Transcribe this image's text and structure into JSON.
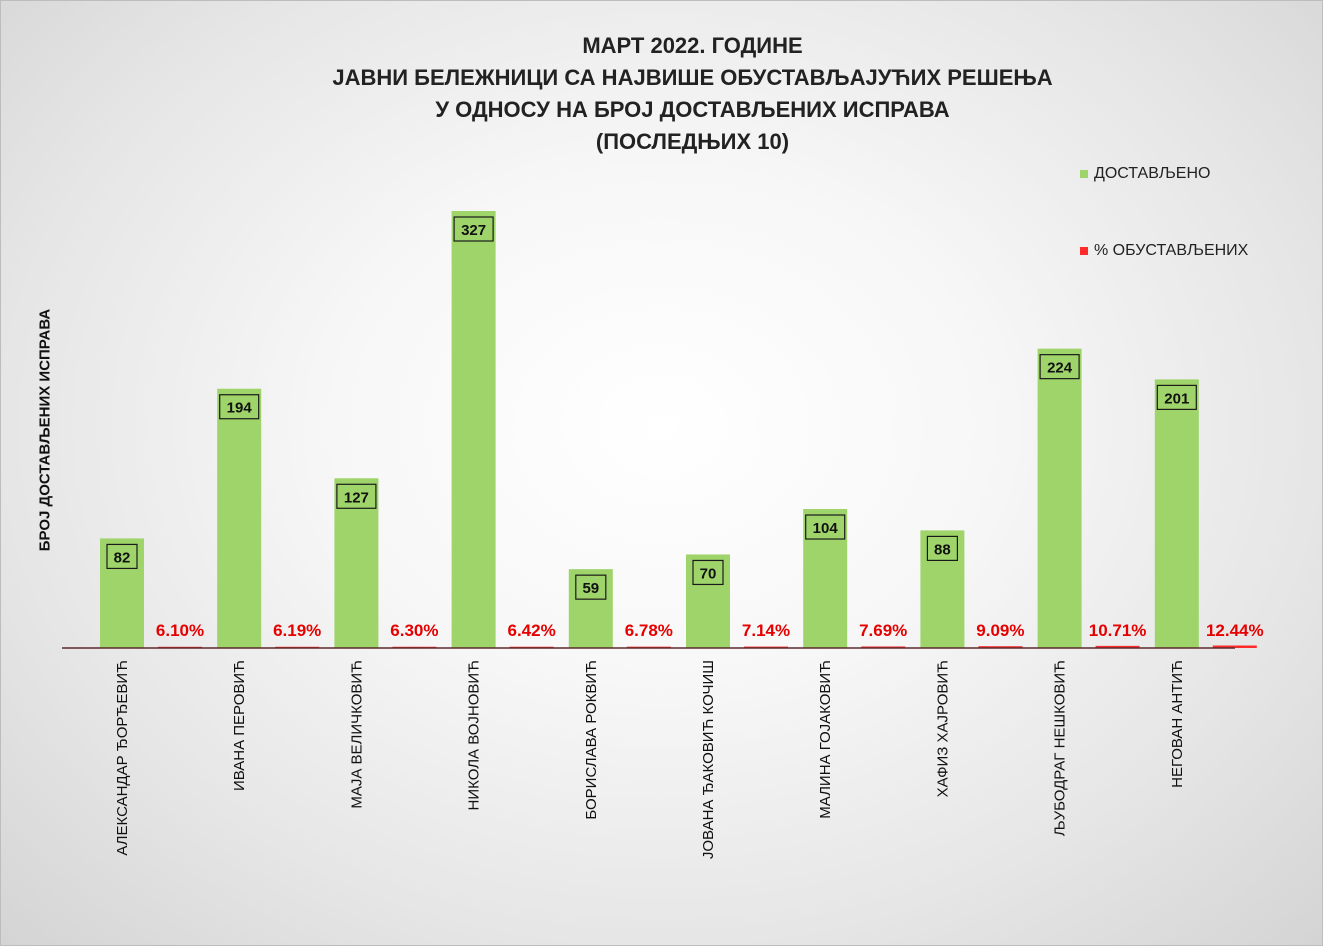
{
  "chart_data": {
    "type": "bar",
    "title_lines": [
      "МАРТ 2022. ГОДИНЕ",
      "ЈАВНИ БЕЛЕЖНИЦИ СА НАЈВИШЕ ОБУСТАВЉАЈУЋИХ РЕШЕЊА",
      "У ОДНОСУ НА БРОЈ ДОСТАВЉЕНИХ ИСПРАВА",
      "(ПОСЛЕДЊИХ 10)"
    ],
    "ylabel": "БРОЈ ДОСТАВЉЕНИХ ИСПРАВА",
    "categories": [
      "АЛЕКСАНДАР ЂОРЂЕВИЋ",
      "ИВАНА ПЕРОВИЋ",
      "МАЈА ВЕЛИЧКОВИЋ",
      "НИКОЛА ВОЈНОВИЋ",
      "БОРИСЛАВА РОКВИЋ",
      "ЈОВАНА ЂАКОВИЋ КОЧИШ",
      "МАЛИНА ГОЈАКОВИЋ",
      "ХАФИЗ ХАЈРОВИЋ",
      "ЉУБОДРАГ НЕШКОВИЋ",
      "НЕГОВАН АНТИЋ"
    ],
    "series": [
      {
        "name": "ДОСТАВЉЕНО",
        "color": "#9ed46a",
        "values": [
          82,
          194,
          127,
          327,
          59,
          70,
          104,
          88,
          224,
          201
        ]
      },
      {
        "name": "% ОБУСТАВЉЕНИХ",
        "color": "#ff2a2a",
        "values": [
          6.1,
          6.19,
          6.3,
          6.42,
          6.78,
          7.14,
          7.69,
          9.09,
          10.71,
          12.44
        ],
        "labels": [
          "6.10%",
          "6.19%",
          "6.30%",
          "6.42%",
          "6.78%",
          "7.14%",
          "7.69%",
          "9.09%",
          "10.71%",
          "12.44%"
        ]
      }
    ],
    "ylim": [
      0,
      327
    ],
    "grid": false,
    "legend_position": "top-right"
  }
}
